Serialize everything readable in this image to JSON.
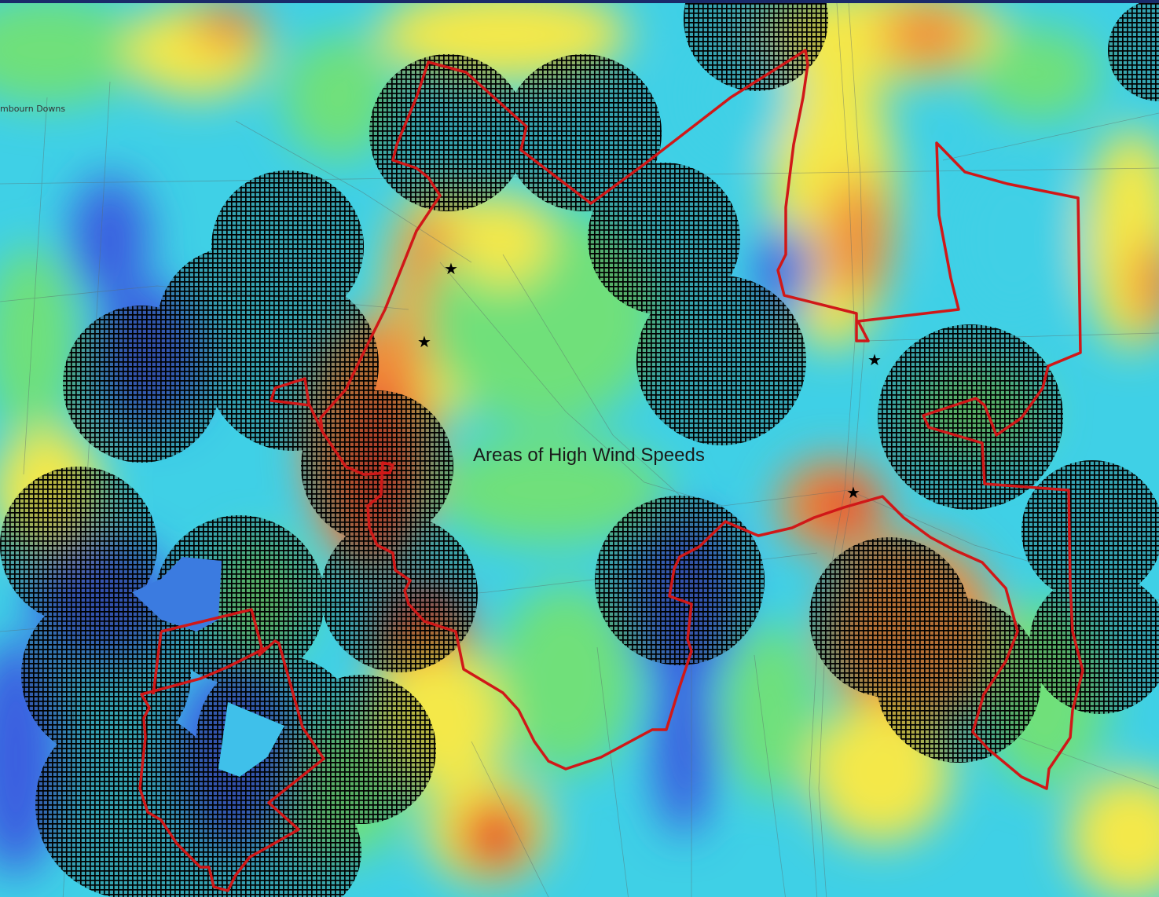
{
  "map": {
    "annotation": "Areas of High Wind Speeds",
    "place_label": "mbourn Downs",
    "star_symbol": "★",
    "colors": {
      "boundary": "#d01818",
      "hatch": "#000000",
      "low_speed": "#3b5ee0",
      "mid_low": "#3fd0e6",
      "mid": "#6fe07a",
      "mid_high": "#f4e84a",
      "high_speed": "#f08a3a",
      "highest": "#e5342a"
    }
  }
}
